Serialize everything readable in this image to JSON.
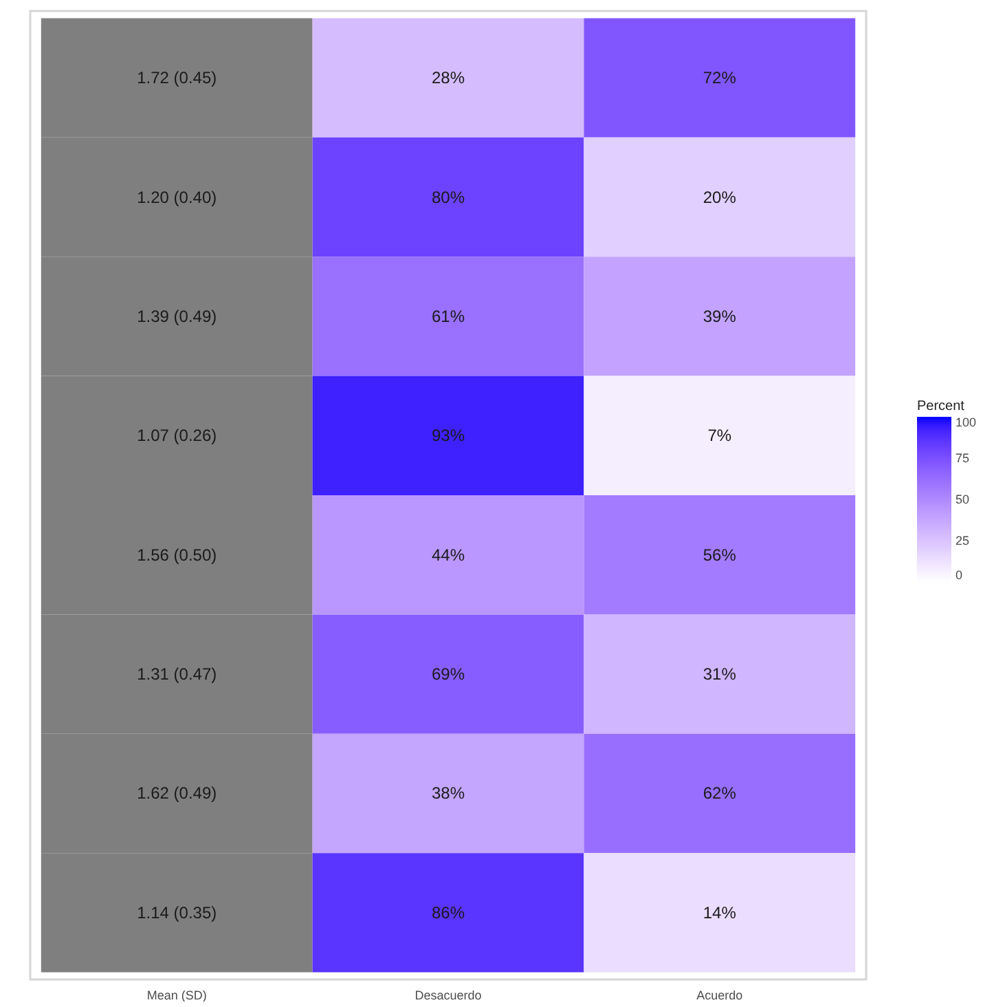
{
  "chart_data": {
    "type": "heatmap",
    "categories": [
      "Mean (SD)",
      "Desacuerdo",
      "Acuerdo"
    ],
    "y_categories": [
      null,
      null,
      null,
      null,
      null,
      null,
      null,
      null
    ],
    "cells": [
      [
        null,
        28,
        72
      ],
      [
        null,
        80,
        20
      ],
      [
        null,
        61,
        39
      ],
      [
        null,
        93,
        7
      ],
      [
        null,
        44,
        56
      ],
      [
        null,
        69,
        31
      ],
      [
        null,
        38,
        62
      ],
      [
        null,
        86,
        14
      ]
    ],
    "cell_labels": [
      [
        "1.72 (0.45)",
        "28%",
        "72%"
      ],
      [
        "1.20 (0.40)",
        "80%",
        "20%"
      ],
      [
        "1.39 (0.49)",
        "61%",
        "39%"
      ],
      [
        "1.07 (0.26)",
        "93%",
        "7%"
      ],
      [
        "1.56 (0.50)",
        "44%",
        "56%"
      ],
      [
        "1.31 (0.47)",
        "69%",
        "31%"
      ],
      [
        "1.62 (0.49)",
        "38%",
        "62%"
      ],
      [
        "1.14 (0.35)",
        "86%",
        "14%"
      ]
    ],
    "clabel": "Percent",
    "clim": [
      0,
      100
    ],
    "cticks": [
      0,
      25,
      50,
      75,
      100
    ],
    "tick_labels": "x"
  }
}
